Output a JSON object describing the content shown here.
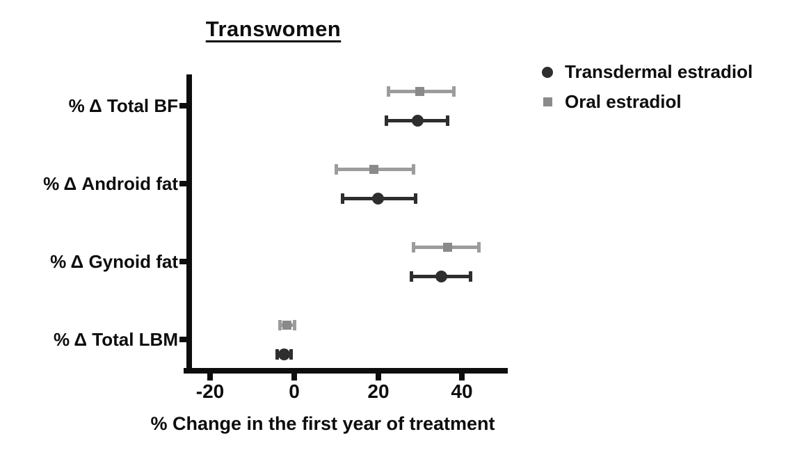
{
  "title": "Transwomen",
  "legend": [
    {
      "label": "Transdermal estradiol",
      "marker": "circle",
      "color": "#2e2e2e"
    },
    {
      "label": "Oral estradiol",
      "marker": "square",
      "color": "#8a8a8a"
    }
  ],
  "chart_data": {
    "type": "scatter",
    "subtype": "horizontal-point-estimates-with-error-bars",
    "title": "Transwomen",
    "xlabel": "% Change in the first year of treatment",
    "ylabel": "",
    "categories": [
      "% Δ Total BF",
      "% Δ Android fat",
      "% Δ Gynoid fat",
      "% Δ Total LBM"
    ],
    "x_ticks": [
      -20,
      0,
      20,
      40
    ],
    "xlim": [
      -26,
      51
    ],
    "grid": false,
    "legend_position": "top-right",
    "axis_color": "#0d0d0d",
    "series": [
      {
        "name": "Oral estradiol",
        "marker": "square",
        "color": "#8a8a8a",
        "line_color": "#9c9c9c",
        "row_position": "upper",
        "values": [
          30,
          19,
          36.5,
          -1.7
        ],
        "ci_low": [
          22.5,
          10,
          28.5,
          -3.4
        ],
        "ci_high": [
          38,
          28.5,
          44,
          0
        ]
      },
      {
        "name": "Transdermal estradiol",
        "marker": "circle",
        "color": "#2e2e2e",
        "line_color": "#2e2e2e",
        "row_position": "lower",
        "values": [
          29.5,
          20,
          35,
          -2.4
        ],
        "ci_low": [
          22,
          11.5,
          28,
          -4.1
        ],
        "ci_high": [
          36.5,
          29,
          42,
          -0.8
        ]
      }
    ]
  }
}
